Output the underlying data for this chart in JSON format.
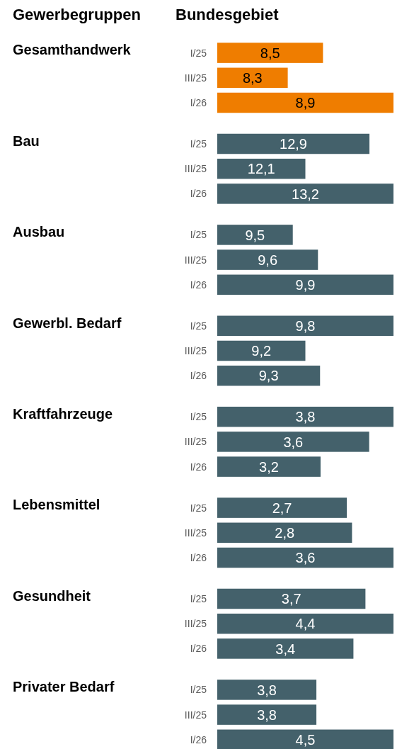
{
  "chart_data": [
    {
      "type": "bar",
      "orientation": "horizontal",
      "ylabel": "Gesamthandwerk",
      "annotations": [
        "Gewerbegruppen",
        "Bundesgebiet"
      ],
      "categories": [
        "I/25",
        "III/25",
        "I/26"
      ],
      "values": [
        8.5,
        8.3,
        8.9
      ],
      "value_labels": [
        "8,5",
        "8,3",
        "8,9"
      ],
      "color": "#ef7d00",
      "xlim": [
        7.9,
        8.9
      ],
      "tick_labels": "y"
    },
    {
      "type": "bar",
      "orientation": "horizontal",
      "ylabel": "Bau",
      "categories": [
        "I/25",
        "III/25",
        "I/26"
      ],
      "values": [
        12.9,
        12.1,
        13.2
      ],
      "value_labels": [
        "12,9",
        "12,1",
        "13,2"
      ],
      "color": "#44616b",
      "xlim": [
        11,
        13.2
      ],
      "tick_labels": "y"
    },
    {
      "type": "bar",
      "orientation": "horizontal",
      "ylabel": "Ausbau",
      "categories": [
        "I/25",
        "III/25",
        "I/26"
      ],
      "values": [
        9.5,
        9.6,
        9.9
      ],
      "value_labels": [
        "9,5",
        "9,6",
        "9,9"
      ],
      "color": "#44616b",
      "xlim": [
        9.2,
        9.9
      ],
      "tick_labels": "y"
    },
    {
      "type": "bar",
      "orientation": "horizontal",
      "ylabel": "Gewerbl. Bedarf",
      "categories": [
        "I/25",
        "III/25",
        "I/26"
      ],
      "values": [
        9.8,
        9.2,
        9.3
      ],
      "value_labels": [
        "9,8",
        "9,2",
        "9,3"
      ],
      "color": "#44616b",
      "xlim": [
        8.6,
        9.8
      ],
      "tick_labels": "y"
    },
    {
      "type": "bar",
      "orientation": "horizontal",
      "ylabel": "Kraftfahrzeuge",
      "categories": [
        "I/25",
        "III/25",
        "I/26"
      ],
      "values": [
        3.8,
        3.6,
        3.2
      ],
      "value_labels": [
        "3,8",
        "3,6",
        "3,2"
      ],
      "color": "#44616b",
      "xlim": [
        2.35,
        3.8
      ],
      "tick_labels": "y"
    },
    {
      "type": "bar",
      "orientation": "horizontal",
      "ylabel": "Lebensmittel",
      "categories": [
        "I/25",
        "III/25",
        "I/26"
      ],
      "values": [
        2.7,
        2.8,
        3.6
      ],
      "value_labels": [
        "2,7",
        "2,8",
        "3,6"
      ],
      "color": "#44616b",
      "xlim": [
        0.2,
        3.6
      ],
      "tick_labels": "y"
    },
    {
      "type": "bar",
      "orientation": "horizontal",
      "ylabel": "Gesundheit",
      "categories": [
        "I/25",
        "III/25",
        "I/26"
      ],
      "values": [
        3.7,
        4.4,
        3.4
      ],
      "value_labels": [
        "3,7",
        "4,4",
        "3,4"
      ],
      "color": "#44616b",
      "xlim": [
        0,
        4.4
      ],
      "tick_labels": "y"
    },
    {
      "type": "bar",
      "orientation": "horizontal",
      "ylabel": "Privater Bedarf",
      "categories": [
        "I/25",
        "III/25",
        "I/26"
      ],
      "values": [
        3.8,
        3.8,
        4.5
      ],
      "value_labels": [
        "3,8",
        "3,8",
        "4,5"
      ],
      "color": "#44616b",
      "xlim": [
        2.9,
        4.5
      ],
      "tick_labels": "y"
    }
  ]
}
